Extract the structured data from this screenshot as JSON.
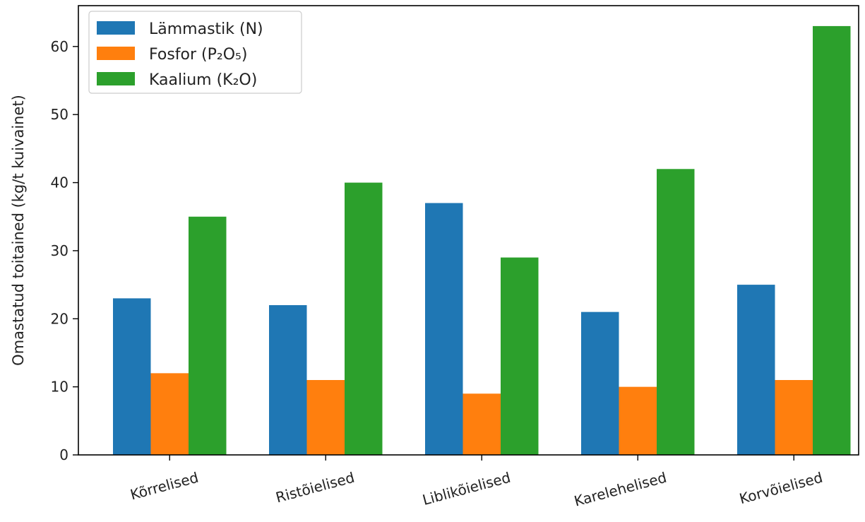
{
  "chart_data": {
    "type": "bar",
    "title": "",
    "xlabel": "",
    "ylabel": "Omastatud toitained (kg/t kuivainet)",
    "categories": [
      "Kõrrelised",
      "Ristõielised",
      "Liblikõielised",
      "Karelehelised",
      "Korvõielised"
    ],
    "series": [
      {
        "name": "Lämmastik (N)",
        "color": "#1f77b4",
        "values": [
          23,
          22,
          37,
          21,
          25
        ]
      },
      {
        "name": "Fosfor (P₂O₅)",
        "color": "#ff7f0e",
        "values": [
          12,
          11,
          9,
          10,
          11
        ]
      },
      {
        "name": "Kaalium (K₂O)",
        "color": "#2ca02c",
        "values": [
          35,
          40,
          29,
          42,
          63
        ]
      }
    ],
    "ylim": [
      0,
      66
    ],
    "yticks": [
      0,
      10,
      20,
      30,
      40,
      50,
      60
    ],
    "legend_position": "top-left",
    "grid": false
  }
}
